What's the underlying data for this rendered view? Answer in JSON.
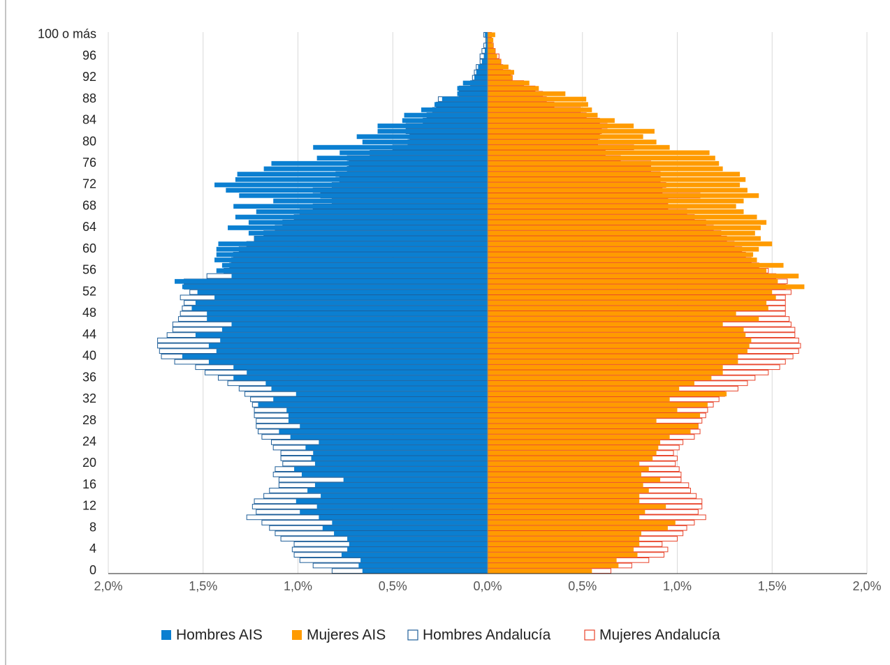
{
  "chart_data": {
    "type": "pyramid",
    "categories": [
      "0",
      null,
      null,
      null,
      "4",
      null,
      null,
      null,
      "8",
      null,
      null,
      null,
      "12",
      null,
      null,
      null,
      "16",
      null,
      null,
      null,
      "20",
      null,
      null,
      null,
      "24",
      null,
      null,
      null,
      "28",
      null,
      null,
      null,
      "32",
      null,
      null,
      null,
      "36",
      null,
      null,
      null,
      "40",
      null,
      null,
      null,
      "44",
      null,
      null,
      null,
      "48",
      null,
      null,
      null,
      "52",
      null,
      null,
      null,
      "56",
      null,
      null,
      null,
      "60",
      null,
      null,
      null,
      "64",
      null,
      null,
      null,
      "68",
      null,
      null,
      null,
      "72",
      null,
      null,
      null,
      "76",
      null,
      null,
      null,
      "80",
      null,
      null,
      null,
      "84",
      null,
      null,
      null,
      "88",
      null,
      null,
      null,
      "92",
      null,
      null,
      null,
      "96",
      null,
      null,
      null,
      "100 o más"
    ],
    "series": [
      {
        "name": "Hombres AIS",
        "color": "#0b7fd1",
        "style": "filled",
        "values": [
          -0.66,
          -0.68,
          -0.67,
          -0.77,
          -0.74,
          -0.73,
          -0.74,
          -0.81,
          -0.87,
          -0.82,
          -0.89,
          -0.99,
          -0.9,
          -1.01,
          -0.88,
          -0.95,
          -0.91,
          -0.76,
          -0.98,
          -1.02,
          -0.91,
          -0.93,
          -0.92,
          -0.96,
          -0.89,
          -1.04,
          -1.1,
          -0.99,
          -1.05,
          -1.05,
          -1.06,
          -1.21,
          -1.13,
          -1.01,
          -1.14,
          -1.17,
          -1.34,
          -1.27,
          -1.34,
          -1.47,
          -1.61,
          -1.43,
          -1.47,
          -1.41,
          -1.54,
          -1.4,
          -1.35,
          -1.48,
          -1.48,
          -1.56,
          -1.54,
          -1.44,
          -1.53,
          -1.61,
          -1.65,
          -1.35,
          -1.43,
          -1.4,
          -1.44,
          -1.43,
          -1.43,
          -1.42,
          -1.23,
          -1.26,
          -1.37,
          -1.26,
          -1.33,
          -1.22,
          -1.34,
          -1.13,
          -1.31,
          -1.38,
          -1.44,
          -1.33,
          -1.32,
          -1.18,
          -1.14,
          -0.9,
          -0.78,
          -0.92,
          -0.66,
          -0.69,
          -0.58,
          -0.58,
          -0.45,
          -0.44,
          -0.35,
          -0.28,
          -0.24,
          -0.16,
          -0.16,
          -0.13,
          -0.07,
          -0.06,
          -0.05,
          -0.03,
          -0.02,
          -0.015,
          -0.01,
          -0.007,
          -0.014
        ]
      },
      {
        "name": "Mujeres AIS",
        "color": "#ff9b00",
        "style": "filled",
        "values": [
          0.55,
          0.69,
          0.68,
          0.79,
          0.77,
          0.8,
          0.8,
          0.81,
          0.95,
          0.99,
          0.8,
          0.83,
          0.94,
          0.8,
          0.8,
          0.85,
          0.82,
          0.91,
          0.81,
          0.85,
          0.8,
          0.87,
          0.89,
          0.9,
          0.91,
          0.96,
          1.07,
          1.11,
          0.89,
          1.12,
          1.0,
          1.16,
          0.96,
          1.26,
          1.01,
          1.09,
          1.18,
          1.24,
          1.24,
          1.32,
          1.32,
          1.37,
          1.38,
          1.39,
          1.36,
          1.35,
          1.24,
          1.43,
          1.31,
          1.48,
          1.47,
          1.52,
          1.5,
          1.67,
          1.53,
          1.64,
          1.47,
          1.56,
          1.42,
          1.4,
          1.43,
          1.5,
          1.44,
          1.41,
          1.44,
          1.47,
          1.42,
          1.35,
          1.31,
          1.35,
          1.43,
          1.37,
          1.33,
          1.36,
          1.33,
          1.24,
          1.22,
          1.2,
          1.17,
          0.96,
          0.89,
          0.82,
          0.88,
          0.77,
          0.67,
          0.58,
          0.55,
          0.53,
          0.52,
          0.41,
          0.27,
          0.22,
          0.13,
          0.14,
          0.11,
          0.07,
          0.05,
          0.04,
          0.03,
          0.03,
          0.04
        ]
      },
      {
        "name": "Hombres Andalucía",
        "color": "#1f5f99",
        "style": "outline",
        "values": [
          -0.82,
          -0.92,
          -0.99,
          -1.02,
          -1.03,
          -1.02,
          -1.09,
          -1.12,
          -1.15,
          -1.19,
          -1.27,
          -1.22,
          -1.24,
          -1.23,
          -1.18,
          -1.15,
          -1.1,
          -1.1,
          -1.13,
          -1.12,
          -1.08,
          -1.09,
          -1.09,
          -1.13,
          -1.14,
          -1.19,
          -1.21,
          -1.22,
          -1.22,
          -1.23,
          -1.23,
          -1.24,
          -1.25,
          -1.28,
          -1.31,
          -1.37,
          -1.42,
          -1.49,
          -1.54,
          -1.65,
          -1.72,
          -1.73,
          -1.74,
          -1.74,
          -1.69,
          -1.66,
          -1.66,
          -1.63,
          -1.62,
          -1.61,
          -1.6,
          -1.62,
          -1.57,
          -1.6,
          -1.6,
          -1.48,
          -1.39,
          -1.36,
          -1.35,
          -1.34,
          -1.31,
          -1.27,
          -1.23,
          -1.18,
          -1.12,
          -1.08,
          -1.02,
          -0.99,
          -0.92,
          -0.82,
          -0.88,
          -0.92,
          -0.82,
          -0.78,
          -0.8,
          -0.74,
          -0.73,
          -0.74,
          -0.62,
          -0.5,
          -0.42,
          -0.41,
          -0.43,
          -0.43,
          -0.34,
          -0.32,
          -0.29,
          -0.27,
          -0.26,
          -0.15,
          -0.15,
          -0.09,
          -0.08,
          -0.07,
          -0.06,
          -0.04,
          -0.04,
          -0.03,
          -0.02,
          -0.01,
          -0.02
        ]
      },
      {
        "name": "Mujeres Andalucía",
        "color": "#e8432a",
        "style": "outline",
        "values": [
          0.65,
          0.76,
          0.85,
          0.93,
          0.95,
          0.92,
          1.0,
          1.03,
          1.05,
          1.09,
          1.15,
          1.11,
          1.13,
          1.13,
          1.1,
          1.07,
          1.06,
          1.02,
          1.02,
          1.01,
          0.99,
          1.0,
          0.98,
          1.01,
          1.03,
          1.09,
          1.12,
          1.11,
          1.13,
          1.15,
          1.16,
          1.19,
          1.22,
          1.25,
          1.32,
          1.37,
          1.41,
          1.48,
          1.54,
          1.57,
          1.61,
          1.64,
          1.65,
          1.64,
          1.62,
          1.62,
          1.6,
          1.59,
          1.57,
          1.57,
          1.57,
          1.57,
          1.6,
          1.57,
          1.58,
          1.52,
          1.48,
          1.43,
          1.39,
          1.36,
          1.34,
          1.3,
          1.26,
          1.23,
          1.19,
          1.15,
          1.09,
          1.05,
          0.95,
          0.95,
          1.12,
          0.92,
          0.94,
          0.91,
          0.91,
          0.86,
          0.86,
          0.7,
          0.62,
          0.77,
          0.58,
          0.59,
          0.6,
          0.63,
          0.59,
          0.52,
          0.49,
          0.35,
          0.31,
          0.29,
          0.25,
          0.19,
          0.13,
          0.12,
          0.08,
          0.07,
          0.06,
          0.04,
          0.03,
          0.02,
          0.02
        ]
      }
    ],
    "xlim": [
      -2,
      2
    ],
    "xticks": [
      {
        "value": -2,
        "label": "2,0%"
      },
      {
        "value": -1.5,
        "label": "1,5%"
      },
      {
        "value": -1,
        "label": "1,0%"
      },
      {
        "value": -0.5,
        "label": "0,5%"
      },
      {
        "value": 0,
        "label": "0,0%"
      },
      {
        "value": 0.5,
        "label": "0,5%"
      },
      {
        "value": 1,
        "label": "1,0%"
      },
      {
        "value": 1.5,
        "label": "1,5%"
      },
      {
        "value": 2,
        "label": "2,0%"
      }
    ],
    "grid": true,
    "legend": "bottom"
  }
}
